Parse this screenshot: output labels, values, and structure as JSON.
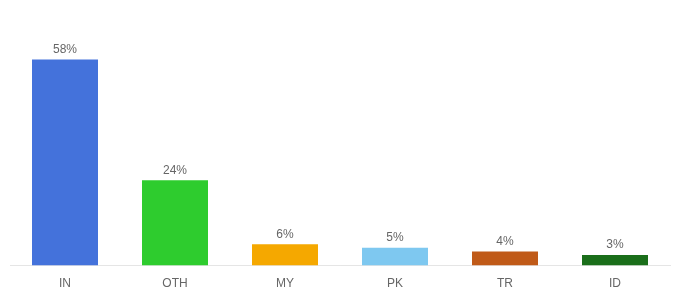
{
  "chart_data": {
    "type": "bar",
    "categories": [
      "IN",
      "OTH",
      "MY",
      "PK",
      "TR",
      "ID"
    ],
    "values": [
      58,
      24,
      6,
      5,
      4,
      3
    ],
    "value_labels": [
      "58%",
      "24%",
      "6%",
      "5%",
      "4%",
      "3%"
    ],
    "colors": [
      "#4472db",
      "#2ecc2e",
      "#f5a800",
      "#7ec8f0",
      "#c05a18",
      "#1a6e1a"
    ],
    "ylim": [
      0,
      68
    ],
    "grid": false,
    "data_labels": true,
    "tick_labels": "x"
  }
}
